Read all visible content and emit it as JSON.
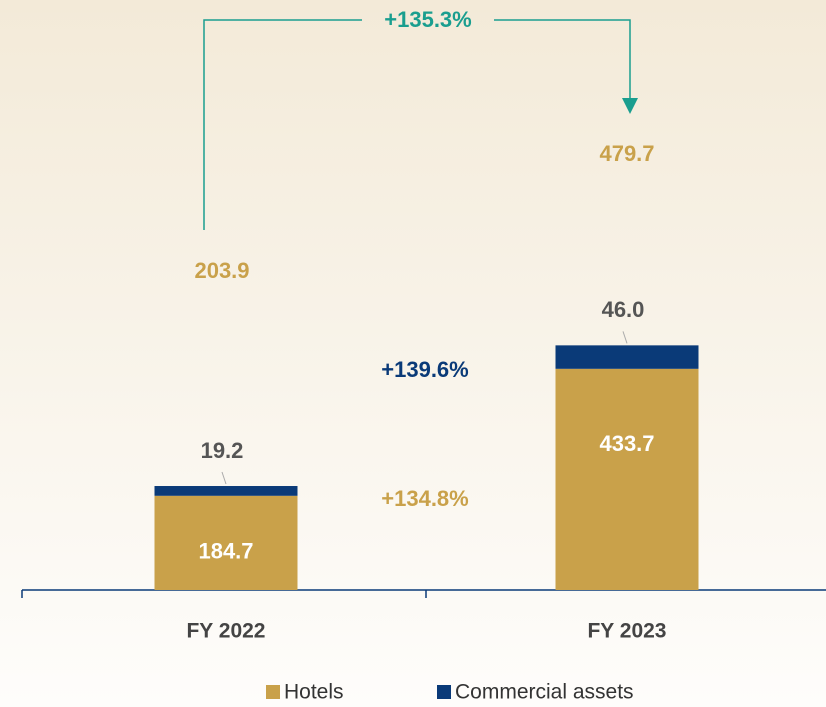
{
  "chart_data": {
    "type": "stacked_bar",
    "categories": [
      "FY 2022",
      "FY 2023"
    ],
    "series": [
      {
        "name": "Hotels",
        "color": "#c9a14a",
        "values": [
          184.7,
          433.7
        ]
      },
      {
        "name": "Commercial assets",
        "color": "#0a3a78",
        "values": [
          19.2,
          46.0
        ],
        "value_labels": [
          "19.2",
          "46.0"
        ]
      }
    ],
    "totals": [
      203.9,
      479.7
    ],
    "growth_total": "+135.3%",
    "growth_commercial": "+139.6%",
    "growth_hotels": "+134.8%"
  }
}
